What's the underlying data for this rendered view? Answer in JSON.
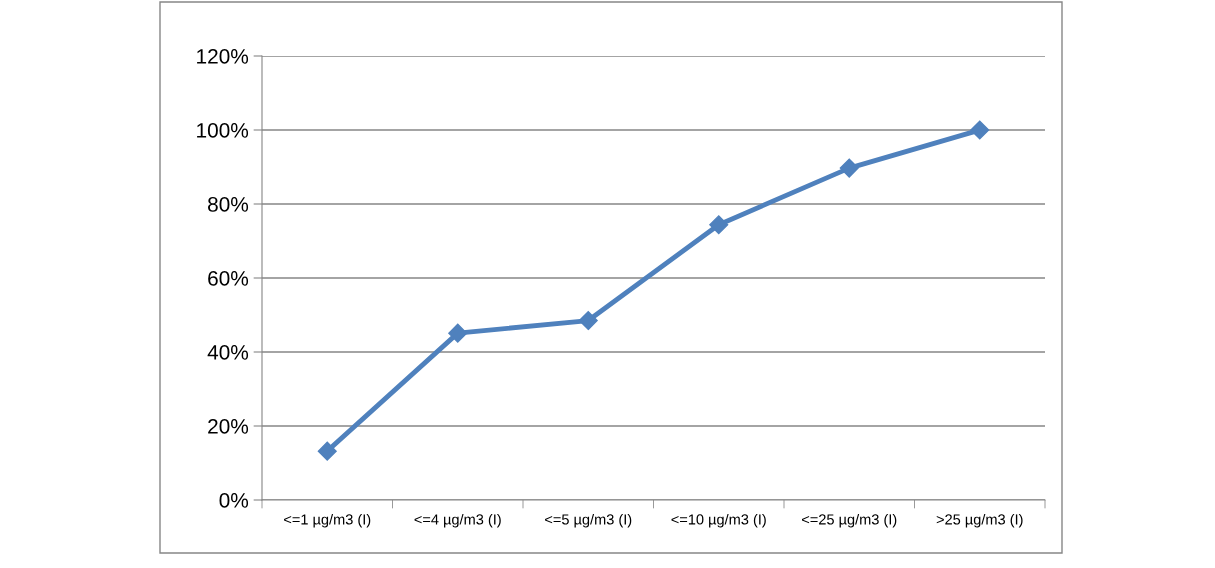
{
  "chart_data": {
    "type": "line",
    "categories": [
      "<=1 µg/m3 (I)",
      "<=4 µg/m3 (I)",
      "<=5 µg/m3 (I)",
      "<=10 µg/m3 (I)",
      "<=25 µg/m3 (I)",
      ">25 µg/m3 (I)"
    ],
    "series": [
      {
        "color": "#4f81bd",
        "values": [
          13.2,
          45.1,
          48.5,
          74.4,
          89.7,
          100
        ]
      }
    ],
    "ylim": [
      0,
      120
    ],
    "yticks": [
      {
        "value": 0,
        "label": "0%"
      },
      {
        "value": 20,
        "label": "20%"
      },
      {
        "value": 40,
        "label": "40%"
      },
      {
        "value": 60,
        "label": "60%"
      },
      {
        "value": 80,
        "label": "80%"
      },
      {
        "value": 100,
        "label": "100%"
      },
      {
        "value": 120,
        "label": "120%"
      }
    ],
    "grid": "y",
    "legend": false,
    "marker": "diamond",
    "line_style": "solid"
  }
}
